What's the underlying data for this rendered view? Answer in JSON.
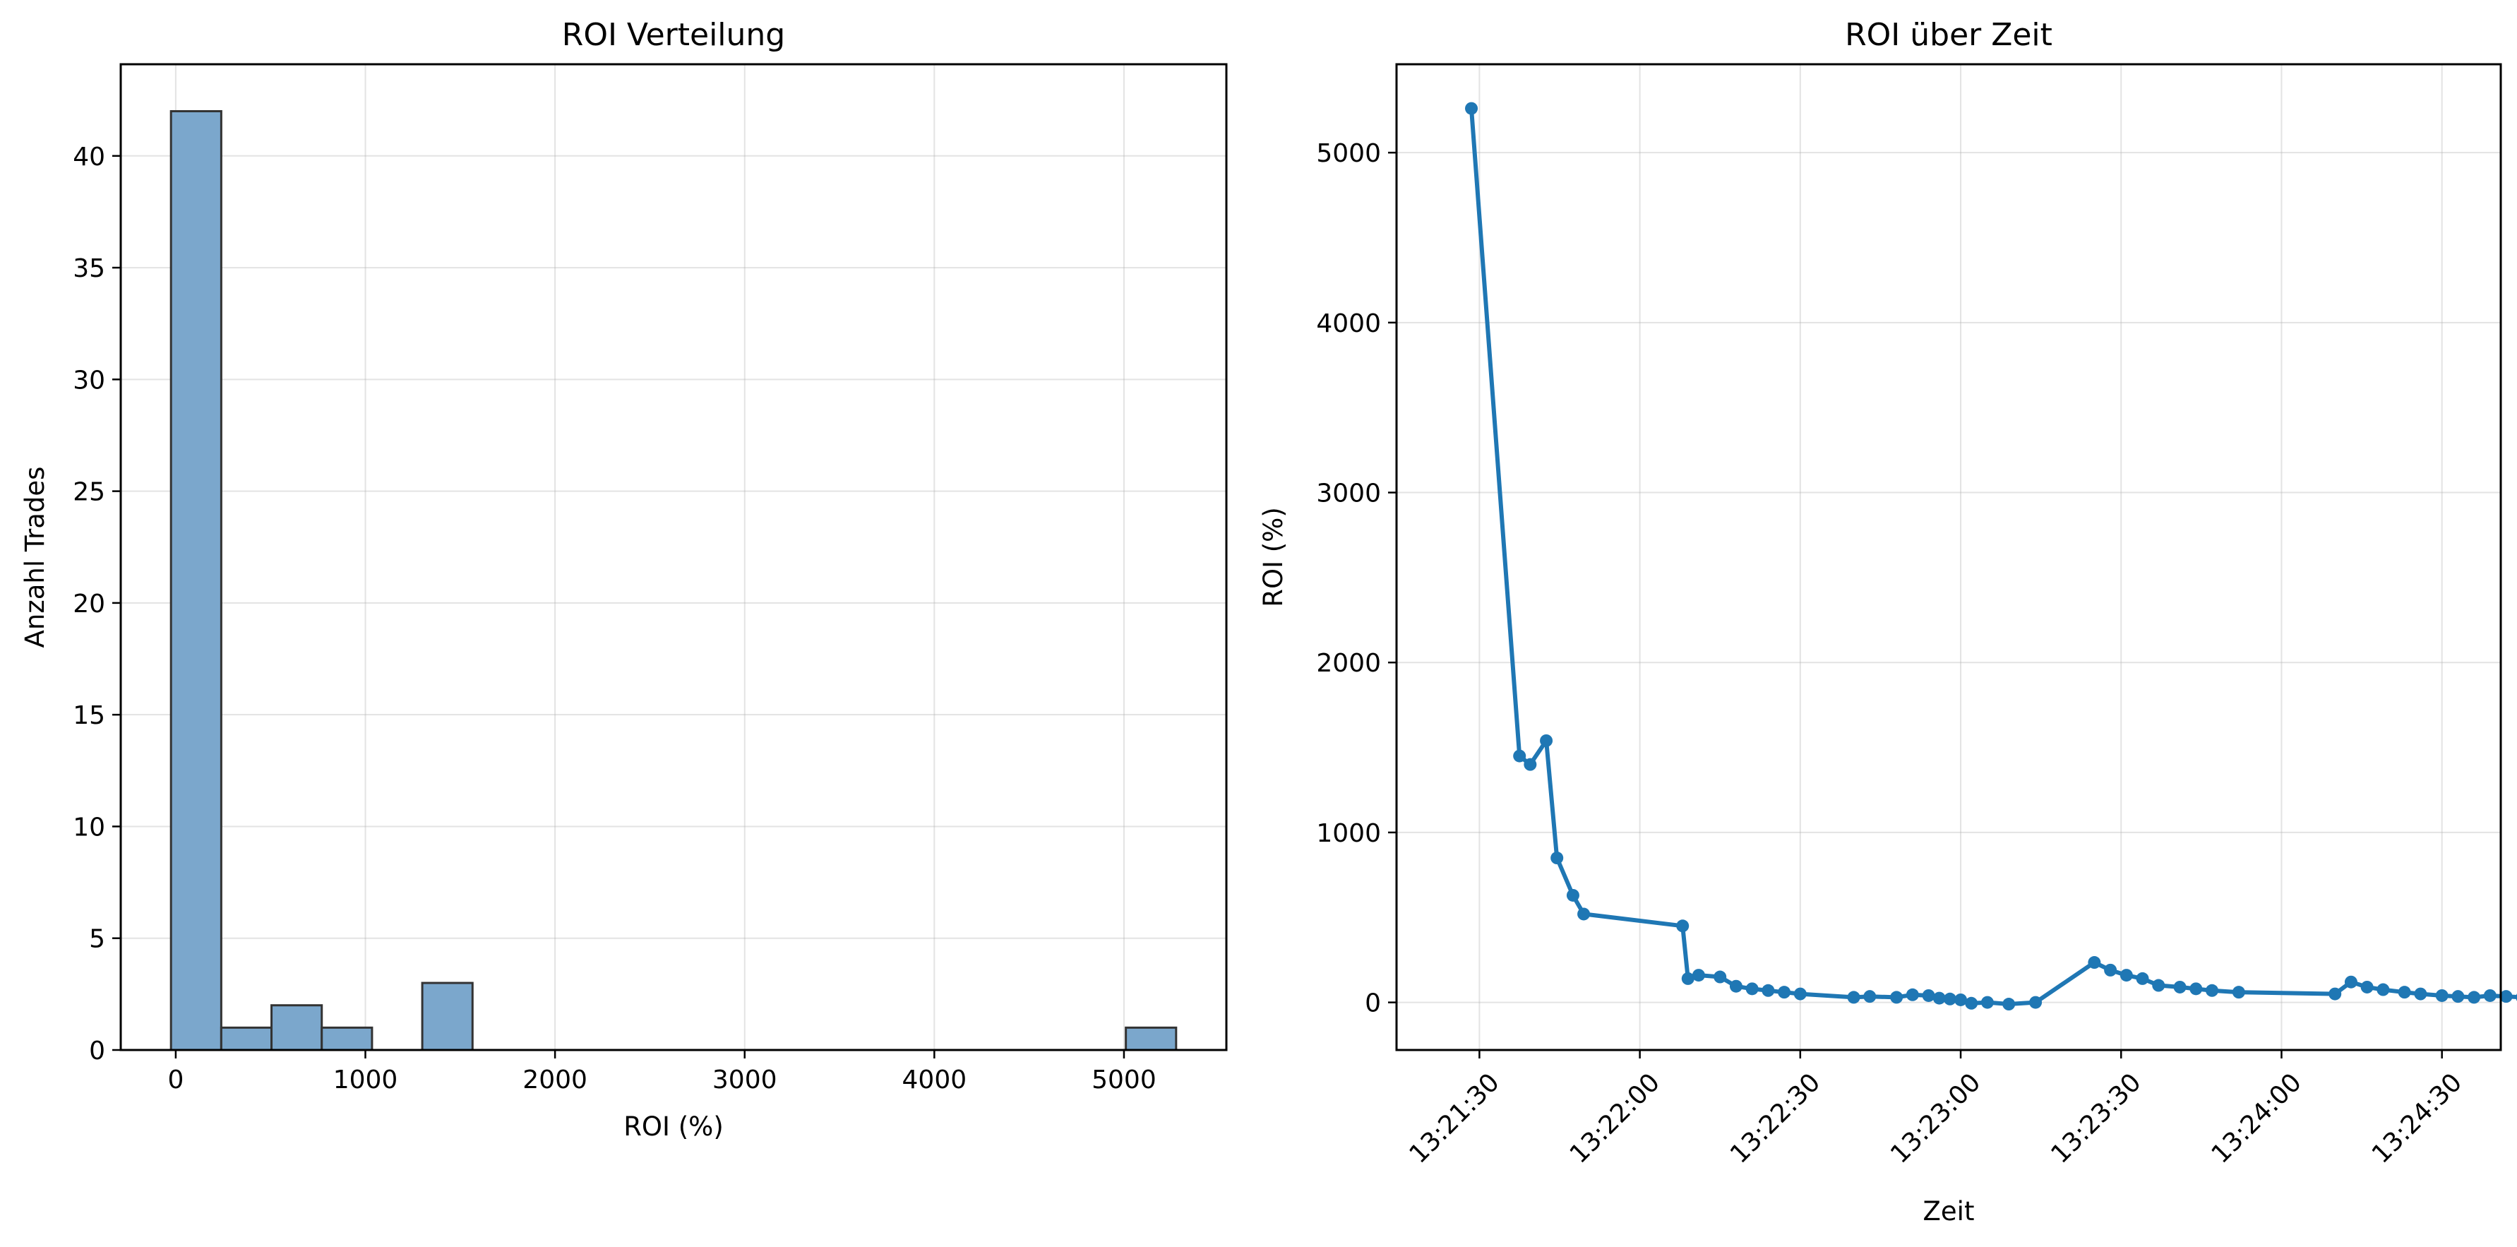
{
  "chart_data": [
    {
      "type": "bar",
      "subtype": "histogram",
      "title": "ROI Verteilung",
      "xlabel": "ROI (%)",
      "ylabel": "Anzahl Trades",
      "xlim": [
        -290,
        5540
      ],
      "ylim": [
        0,
        44.1
      ],
      "xticks": [
        0,
        1000,
        2000,
        3000,
        4000,
        5000
      ],
      "xtick_labels": [
        "0",
        "1000",
        "2000",
        "3000",
        "4000",
        "5000"
      ],
      "yticks": [
        0,
        5,
        10,
        15,
        20,
        25,
        30,
        35,
        40
      ],
      "ytick_labels": [
        "0",
        "5",
        "10",
        "15",
        "20",
        "25",
        "30",
        "35",
        "40"
      ],
      "grid": true,
      "bar_color": "#7ba7cc",
      "edge_color": "#333333",
      "bins": [
        {
          "start": -25,
          "end": 240,
          "count": 42
        },
        {
          "start": 240,
          "end": 505,
          "count": 1
        },
        {
          "start": 505,
          "end": 770,
          "count": 2
        },
        {
          "start": 770,
          "end": 1035,
          "count": 1
        },
        {
          "start": 1035,
          "end": 1300,
          "count": 0
        },
        {
          "start": 1300,
          "end": 1565,
          "count": 3
        },
        {
          "start": 1565,
          "end": 1830,
          "count": 0
        },
        {
          "start": 1830,
          "end": 2095,
          "count": 0
        },
        {
          "start": 2095,
          "end": 2360,
          "count": 0
        },
        {
          "start": 2360,
          "end": 2625,
          "count": 0
        },
        {
          "start": 2625,
          "end": 2890,
          "count": 0
        },
        {
          "start": 2890,
          "end": 3155,
          "count": 0
        },
        {
          "start": 3155,
          "end": 3420,
          "count": 0
        },
        {
          "start": 3420,
          "end": 3685,
          "count": 0
        },
        {
          "start": 3685,
          "end": 3950,
          "count": 0
        },
        {
          "start": 3950,
          "end": 4215,
          "count": 0
        },
        {
          "start": 4215,
          "end": 4480,
          "count": 0
        },
        {
          "start": 4480,
          "end": 4745,
          "count": 0
        },
        {
          "start": 4745,
          "end": 5010,
          "count": 0
        },
        {
          "start": 5010,
          "end": 5275,
          "count": 1
        }
      ]
    },
    {
      "type": "line",
      "title": "ROI über Zeit",
      "xlabel": "Zeit",
      "ylabel": "ROI (%)",
      "xlim_seconds": [
        -15.5,
        191
      ],
      "x_origin_label": "13:21:30",
      "ylim": [
        -280,
        5520
      ],
      "xticks_seconds": [
        0,
        30,
        60,
        90,
        120,
        150,
        180
      ],
      "xtick_labels": [
        "13:21:30",
        "13:22:00",
        "13:22:30",
        "13:23:00",
        "13:23:30",
        "13:24:00",
        "13:24:30"
      ],
      "yticks": [
        0,
        1000,
        2000,
        3000,
        4000,
        5000
      ],
      "ytick_labels": [
        "0",
        "1000",
        "2000",
        "3000",
        "4000",
        "5000"
      ],
      "grid": true,
      "line_color": "#1f77b4",
      "series": [
        {
          "name": "ROI",
          "x_seconds": [
            -1.5,
            7.5,
            9.5,
            12.5,
            14.5,
            17.5,
            19.5,
            38,
            39,
            41,
            45,
            48,
            51,
            54,
            57,
            60,
            70,
            73,
            78,
            81,
            84,
            86,
            88,
            90,
            92,
            95,
            99,
            104,
            115,
            118,
            121,
            124,
            127,
            131,
            134,
            137,
            142,
            160,
            163,
            166,
            169,
            173,
            176,
            180,
            183,
            186,
            189,
            192,
            195
          ],
          "y": [
            5260,
            1450,
            1400,
            1540,
            850,
            630,
            520,
            450,
            140,
            160,
            150,
            95,
            80,
            70,
            60,
            50,
            30,
            35,
            30,
            45,
            40,
            25,
            20,
            15,
            -5,
            0,
            -10,
            0,
            235,
            190,
            160,
            140,
            100,
            90,
            80,
            70,
            60,
            50,
            120,
            90,
            75,
            60,
            50,
            40,
            35,
            30,
            40,
            35,
            30
          ]
        }
      ]
    }
  ]
}
